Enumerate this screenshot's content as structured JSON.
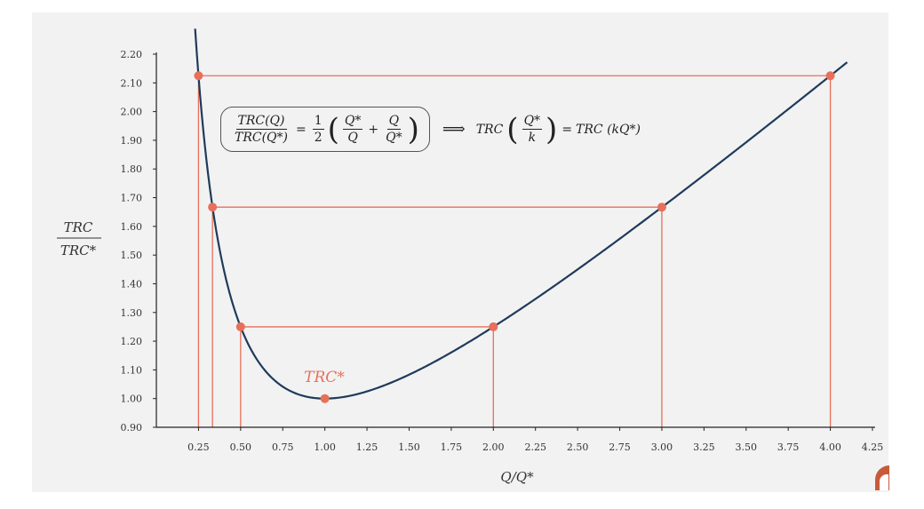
{
  "chart_data": {
    "type": "line",
    "title": "",
    "xlabel": "Q/Q*",
    "ylabel_num": "TRC",
    "ylabel_den": "TRC*",
    "xlim": [
      0,
      4.25
    ],
    "ylim": [
      0.9,
      2.2
    ],
    "x_ticks": [
      "0.25",
      "0.50",
      "0.75",
      "1.00",
      "1.25",
      "1.50",
      "1.75",
      "2.00",
      "2.25",
      "2.50",
      "2.75",
      "3.00",
      "3.25",
      "3.50",
      "3.75",
      "4.00",
      "4.25"
    ],
    "y_ticks": [
      "0.90",
      "1.00",
      "1.10",
      "1.20",
      "1.30",
      "1.40",
      "1.50",
      "1.60",
      "1.70",
      "1.80",
      "1.90",
      "2.00",
      "2.10",
      "2.20"
    ],
    "curve": {
      "function": "0.5*(1/x + x)",
      "x_range": [
        0.23,
        4.1
      ],
      "color": "#1f3b5b"
    },
    "points": [
      {
        "x": 0.25,
        "y": 2.125
      },
      {
        "x": 4.0,
        "y": 2.125
      },
      {
        "x": 0.333,
        "y": 1.667
      },
      {
        "x": 3.0,
        "y": 1.667
      },
      {
        "x": 0.5,
        "y": 1.25
      },
      {
        "x": 2.0,
        "y": 1.25
      },
      {
        "x": 1.0,
        "y": 1.0
      }
    ],
    "pairs": [
      [
        0.25,
        4.0,
        2.125
      ],
      [
        0.333,
        3.0,
        1.667
      ],
      [
        0.5,
        2.0,
        1.25
      ]
    ],
    "min_label": "TRC*",
    "point_color": "#e86f5a",
    "grid": false
  },
  "formula": {
    "lhs_num": "TRC(Q)",
    "lhs_den": "TRC(Q*)",
    "eq": "=",
    "half_num": "1",
    "half_den": "2",
    "a_num": "Q*",
    "a_den": "Q",
    "plus": "+",
    "b_num": "Q",
    "b_den": "Q*",
    "implies": "⟹",
    "rhs_prefix": "TRC",
    "c_num": "Q*",
    "c_den": "k",
    "rhs_eq": "=",
    "rhs_suffix": "TRC (kQ*)"
  }
}
